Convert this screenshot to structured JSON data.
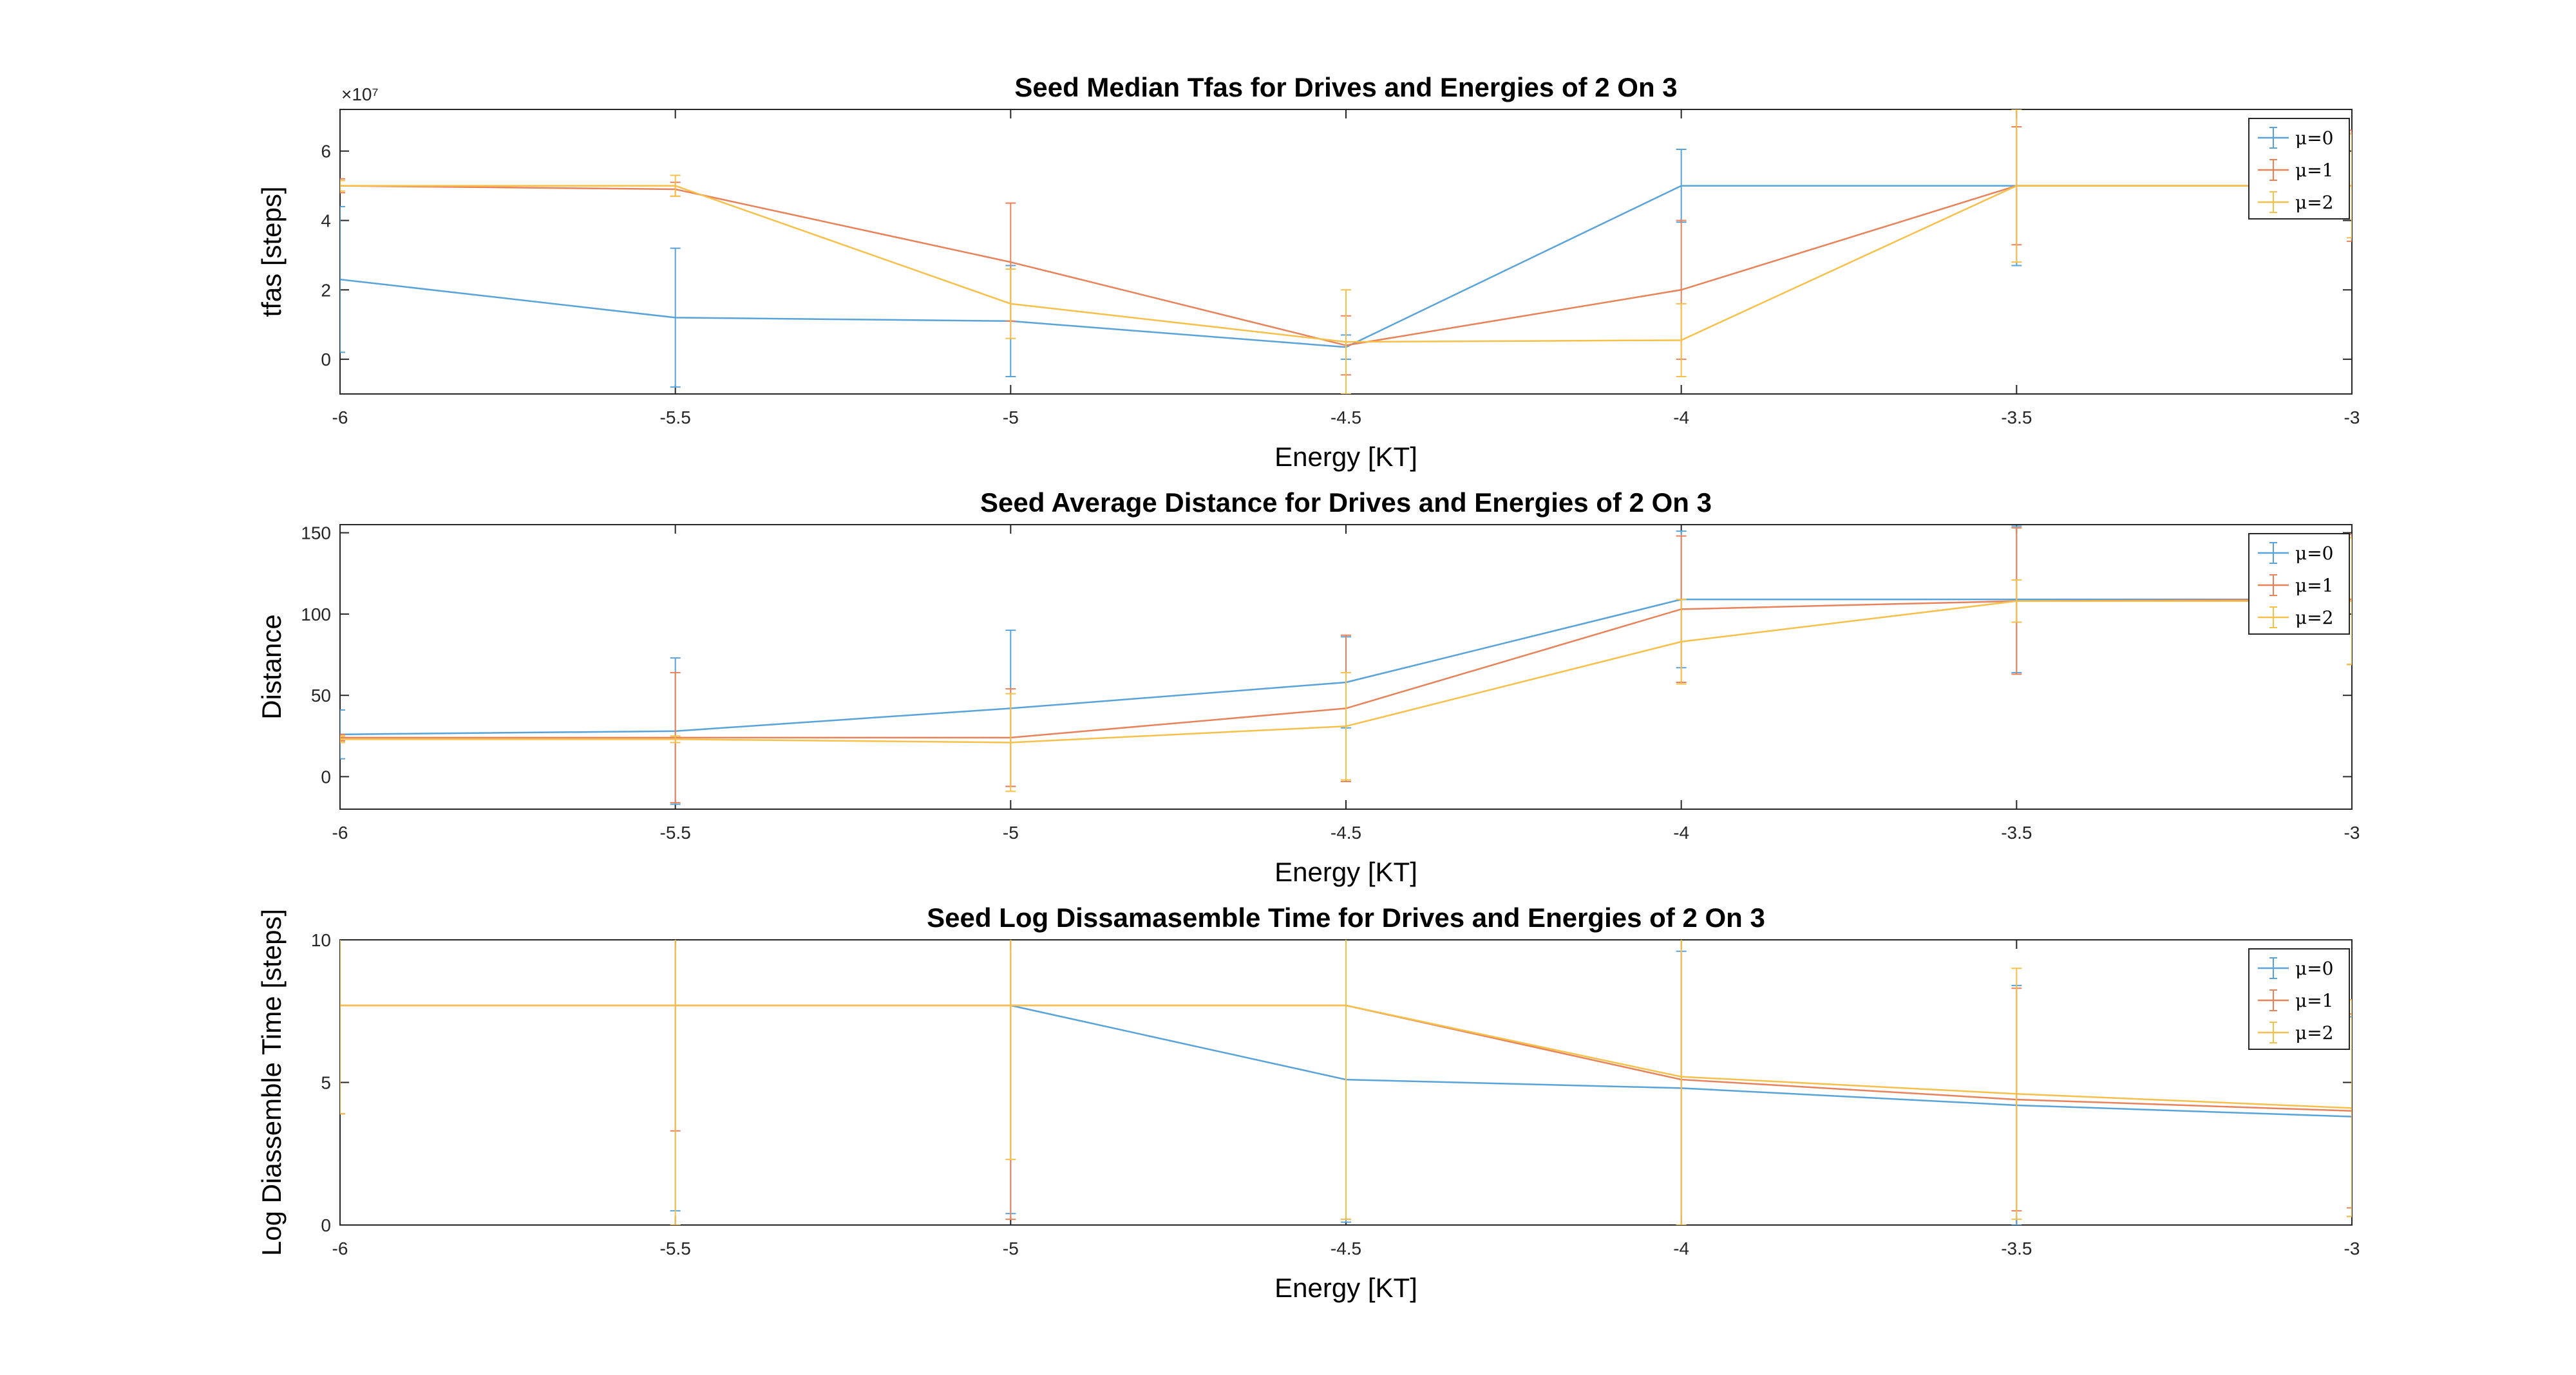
{
  "colors": {
    "mu0": "#5aa3d8",
    "mu1": "#e8825a",
    "mu2": "#f6c04a",
    "axis": "#262626",
    "grid": "#262626"
  },
  "chart_data": [
    {
      "type": "line",
      "title": "Seed Median Tfas for Drives and Energies of 2 On 3",
      "xlabel": "Energy [KT]",
      "ylabel": "tfas [steps]",
      "exponent_label": "×10⁷",
      "xlim": [
        -6,
        -3
      ],
      "ylim": [
        -1,
        7.2
      ],
      "xticks": [
        -6,
        -5.5,
        -5,
        -4.5,
        -4,
        -3.5,
        -3
      ],
      "xtick_labels": [
        "-6",
        "-5.5",
        "-5",
        "-4.5",
        "-4",
        "-3.5",
        "-3"
      ],
      "yticks": [
        0,
        2,
        4,
        6
      ],
      "ytick_labels": [
        "0",
        "2",
        "4",
        "6"
      ],
      "legend_position": "top-right",
      "x": [
        -6,
        -5.5,
        -5,
        -4.5,
        -4,
        -3.5,
        -3
      ],
      "series": [
        {
          "name": "μ=0",
          "values": [
            2.3,
            1.2,
            1.1,
            0.35,
            5.0,
            5.0,
            5.0
          ],
          "err": [
            2.1,
            2.0,
            1.6,
            0.35,
            1.05,
            2.3,
            1.5
          ]
        },
        {
          "name": "μ=1",
          "values": [
            5.0,
            4.9,
            2.8,
            0.4,
            2.0,
            5.0,
            5.0
          ],
          "err": [
            0.2,
            0.2,
            1.7,
            0.85,
            2.0,
            1.7,
            1.6
          ]
        },
        {
          "name": "μ=2",
          "values": [
            5.0,
            5.0,
            1.6,
            0.5,
            0.55,
            5.0,
            5.0
          ],
          "err": [
            0.15,
            0.3,
            1.0,
            1.5,
            1.05,
            2.2,
            1.5
          ]
        }
      ]
    },
    {
      "type": "line",
      "title": "Seed Average Distance  for Drives and Energies of 2 On 3",
      "xlabel": "Energy [KT]",
      "ylabel": "Distance",
      "xlim": [
        -6,
        -3
      ],
      "ylim": [
        -20,
        155
      ],
      "xticks": [
        -6,
        -5.5,
        -5,
        -4.5,
        -4,
        -3.5,
        -3
      ],
      "xtick_labels": [
        "-6",
        "-5.5",
        "-5",
        "-4.5",
        "-4",
        "-3.5",
        "-3"
      ],
      "yticks": [
        0,
        50,
        100,
        150
      ],
      "ytick_labels": [
        "0",
        "50",
        "100",
        "150"
      ],
      "legend_position": "top-right",
      "x": [
        -6,
        -5.5,
        -5,
        -4.5,
        -4,
        -3.5,
        -3
      ],
      "series": [
        {
          "name": "μ=0",
          "values": [
            26,
            28,
            42,
            58,
            109,
            109,
            109
          ],
          "err": [
            15,
            45,
            48,
            28,
            42,
            45,
            40
          ]
        },
        {
          "name": "μ=1",
          "values": [
            24,
            24,
            24,
            42,
            103,
            108,
            109
          ],
          "err": [
            2,
            40,
            30,
            45,
            45,
            45,
            40
          ]
        },
        {
          "name": "μ=2",
          "values": [
            23,
            23,
            21,
            31,
            83,
            108,
            108
          ],
          "err": [
            2,
            2,
            30,
            33,
            26,
            13,
            39
          ]
        }
      ]
    },
    {
      "type": "line",
      "title": "Seed Log Dissamasemble Time for Drives and Energies of 2 On 3",
      "xlabel": "Energy [KT]",
      "ylabel": "Log Diassemble Time [steps]",
      "xlim": [
        -6,
        -3
      ],
      "ylim": [
        0,
        10
      ],
      "xticks": [
        -6,
        -5.5,
        -5,
        -4.5,
        -4,
        -3.5,
        -3
      ],
      "xtick_labels": [
        "-6",
        "-5.5",
        "-5",
        "-4.5",
        "-4",
        "-3.5",
        "-3"
      ],
      "yticks": [
        0,
        5,
        10
      ],
      "ytick_labels": [
        "0",
        "5",
        "10"
      ],
      "legend_position": "top-right",
      "x": [
        -6,
        -5.5,
        -5,
        -4.5,
        -4,
        -3.5,
        -3
      ],
      "series": [
        {
          "name": "μ=0",
          "values": [
            7.7,
            7.7,
            7.7,
            5.1,
            4.8,
            4.2,
            3.8
          ],
          "err": [
            3.8,
            7.2,
            7.3,
            5.0,
            4.8,
            4.2,
            3.5
          ]
        },
        {
          "name": "μ=1",
          "values": [
            7.7,
            7.7,
            7.7,
            7.7,
            5.1,
            4.4,
            4.0
          ],
          "err": [
            3.8,
            4.4,
            7.5,
            7.5,
            5.1,
            3.9,
            3.4
          ]
        },
        {
          "name": "μ=2",
          "values": [
            7.7,
            7.7,
            7.7,
            7.7,
            5.2,
            4.6,
            4.1
          ],
          "err": [
            3.8,
            7.7,
            5.4,
            7.5,
            5.2,
            4.4,
            3.8
          ]
        }
      ]
    }
  ]
}
